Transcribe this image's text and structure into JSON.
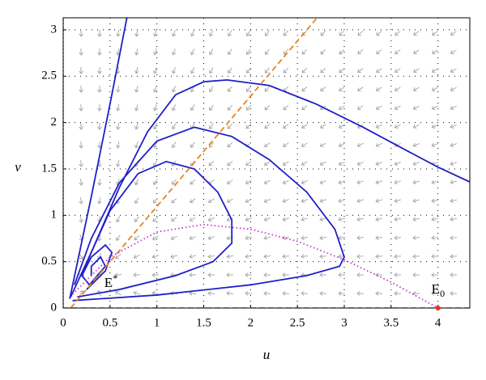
{
  "chart_data": {
    "type": "line",
    "x_label": "u",
    "y_label": "v",
    "xlim": [
      0,
      4.34
    ],
    "ylim": [
      0,
      3.13
    ],
    "xticks": [
      0,
      0.5,
      1,
      1.5,
      2,
      2.5,
      3,
      3.5,
      4
    ],
    "yticks": [
      0,
      0.5,
      1,
      1.5,
      2,
      2.5,
      3
    ],
    "grid": true,
    "series": [
      {
        "color": "#1f1fc8",
        "style": "solid",
        "x": [
          0.07,
          0.3,
          0.5,
          0.68
        ],
        "values": [
          0.1,
          1.2,
          2.2,
          3.13
        ]
      },
      {
        "color": "#1f1fc8",
        "style": "solid",
        "x": [
          0.08,
          0.3,
          0.6,
          0.9,
          1.2,
          1.5,
          1.75,
          2.2,
          2.7,
          3.2,
          3.7,
          4.0,
          4.34
        ],
        "values": [
          0.12,
          0.6,
          1.3,
          1.9,
          2.3,
          2.44,
          2.46,
          2.4,
          2.2,
          1.95,
          1.68,
          1.52,
          1.36
        ]
      },
      {
        "color": "#1f1fc8",
        "style": "solid",
        "x": [
          0.1,
          1,
          2,
          2.6,
          2.95,
          3.0,
          2.9,
          2.6,
          2.2,
          1.8,
          1.4,
          1.0,
          0.6,
          0.3,
          0.12
        ],
        "values": [
          0.08,
          0.14,
          0.25,
          0.35,
          0.45,
          0.55,
          0.85,
          1.25,
          1.6,
          1.85,
          1.95,
          1.8,
          1.35,
          0.75,
          0.25
        ]
      },
      {
        "color": "#1f1fc8",
        "style": "solid",
        "x": [
          0.15,
          0.6,
          1.2,
          1.6,
          1.8,
          1.8,
          1.65,
          1.4,
          1.1,
          0.8,
          0.5,
          0.3,
          0.2
        ],
        "values": [
          0.12,
          0.2,
          0.35,
          0.5,
          0.7,
          0.95,
          1.25,
          1.5,
          1.58,
          1.45,
          1.05,
          0.6,
          0.35
        ]
      },
      {
        "color": "#1f1fc8",
        "style": "solid",
        "x": [
          0.25,
          0.45,
          0.52,
          0.45,
          0.3,
          0.2,
          0.28,
          0.45,
          0.4,
          0.3,
          0.3
        ],
        "values": [
          0.2,
          0.4,
          0.6,
          0.68,
          0.55,
          0.35,
          0.25,
          0.45,
          0.55,
          0.45,
          0.35
        ]
      },
      {
        "color": "#e8831e",
        "style": "dashed",
        "x": [
          0.08,
          2.71
        ],
        "values": [
          0,
          3.13
        ]
      },
      {
        "color": "#e8831e",
        "style": "dashed",
        "x": [
          0,
          4.34
        ],
        "values": [
          0,
          0
        ]
      },
      {
        "color": "#c832c8",
        "style": "dotted",
        "x": [
          0,
          0
        ],
        "values": [
          0,
          3.13
        ]
      },
      {
        "color": "#c832c8",
        "style": "dotted",
        "x": [
          0.1,
          0.5,
          1,
          1.5,
          2,
          2.5,
          3,
          3.5,
          4
        ],
        "values": [
          0.15,
          0.55,
          0.82,
          0.9,
          0.85,
          0.72,
          0.52,
          0.28,
          0
        ]
      }
    ],
    "points": [
      {
        "label": "E",
        "superscript": "*",
        "x": 0.3,
        "y": 0.33,
        "color": null
      },
      {
        "label": "E",
        "subscript": "0",
        "x": 4,
        "y": 0,
        "color": "#e8311e"
      }
    ]
  }
}
